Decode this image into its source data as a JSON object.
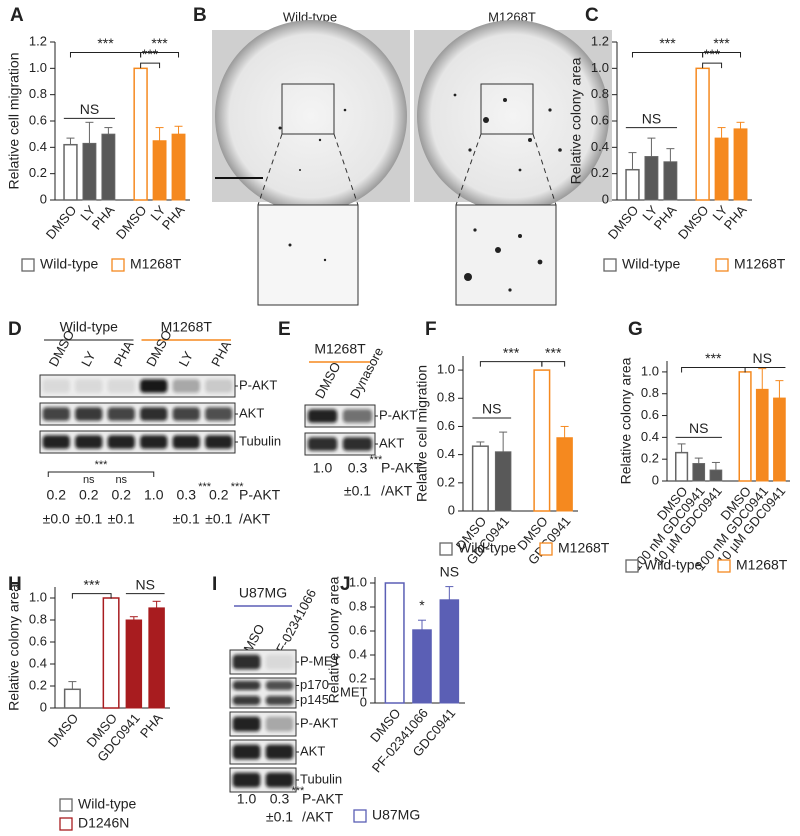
{
  "chart_data": [
    {
      "type": "bar",
      "label": "A",
      "ylabel": "Relative cell migration",
      "ylim": [
        0,
        1.2
      ],
      "yticks": [
        0,
        0.2,
        0.4,
        0.6,
        0.8,
        {
          "value": 1,
          "label": "1.0"
        },
        1.2
      ],
      "categories": [
        "DMSO",
        "LY",
        "PHA",
        "DMSO",
        "LY",
        "PHA"
      ],
      "series": [
        {
          "name": "Wild-type",
          "color": "#666666",
          "fills": [
            "#ffffff",
            "#595959",
            "#595959",
            null,
            null,
            null
          ],
          "values": [
            0.42,
            0.43,
            0.5,
            null,
            null,
            null
          ],
          "errors": [
            0.05,
            0.16,
            0.05,
            null,
            null,
            null
          ]
        },
        {
          "name": "M1268T",
          "color": "#f5891f",
          "fills": [
            null,
            null,
            null,
            "#ffffff",
            "#f5891f",
            "#f5891f"
          ],
          "values": [
            null,
            null,
            null,
            1.0,
            0.45,
            0.5
          ],
          "errors": [
            null,
            null,
            null,
            null,
            0.1,
            0.06
          ]
        }
      ],
      "annotations": [
        "***",
        "NS",
        "***",
        "***"
      ]
    },
    {
      "type": "bar",
      "label": "C",
      "ylabel": "Relative colony area",
      "ylim": [
        0,
        1.2
      ],
      "yticks": [
        0,
        0.2,
        0.4,
        0.6,
        0.8,
        {
          "value": 1,
          "label": "1.0"
        },
        1.2
      ],
      "categories": [
        "DMSO",
        "LY",
        "PHA",
        "DMSO",
        "LY",
        "PHA"
      ],
      "series": [
        {
          "name": "Wild-type",
          "color": "#666666",
          "fills": [
            "#ffffff",
            "#595959",
            "#595959",
            null,
            null,
            null
          ],
          "values": [
            0.23,
            0.33,
            0.29,
            null,
            null,
            null
          ],
          "errors": [
            0.13,
            0.14,
            0.1,
            null,
            null,
            null
          ]
        },
        {
          "name": "M1268T",
          "color": "#f5891f",
          "fills": [
            null,
            null,
            null,
            "#ffffff",
            "#f5891f",
            "#f5891f"
          ],
          "values": [
            null,
            null,
            null,
            1.0,
            0.47,
            0.54
          ],
          "errors": [
            null,
            null,
            null,
            null,
            0.08,
            0.05
          ]
        }
      ],
      "annotations": [
        "***",
        "NS",
        "***",
        "***"
      ]
    },
    {
      "type": "bar",
      "label": "F",
      "ylabel": "Relative cell migration",
      "ylim": [
        0,
        1.1
      ],
      "yticks": [
        0,
        0.2,
        0.4,
        0.6,
        0.8,
        {
          "value": 1,
          "label": "1.0"
        }
      ],
      "categories": [
        "DMSO",
        "GDC0941",
        "DMSO",
        "GDC0941"
      ],
      "series": [
        {
          "name": "Wild-type",
          "color": "#666666",
          "fills": [
            "#ffffff",
            "#595959",
            null,
            null
          ],
          "values": [
            0.46,
            0.42,
            null,
            null
          ],
          "errors": [
            0.03,
            0.14,
            null,
            null
          ]
        },
        {
          "name": "M1268T",
          "color": "#f5891f",
          "fills": [
            null,
            null,
            "#ffffff",
            "#f5891f"
          ],
          "values": [
            null,
            null,
            1.0,
            0.52
          ],
          "errors": [
            null,
            null,
            null,
            0.08
          ]
        }
      ],
      "annotations": [
        "***",
        "***",
        "NS"
      ]
    },
    {
      "type": "bar",
      "label": "G",
      "ylabel": "Relative colony area",
      "ylim": [
        0,
        1.1
      ],
      "yticks": [
        0,
        0.2,
        0.4,
        0.6,
        0.8,
        {
          "value": 1,
          "label": "1.0"
        }
      ],
      "categories": [
        "DMSO",
        "100 nM GDC0941",
        "10 µM GDC0941",
        "DMSO",
        "100 nM GDC0941",
        "10 µM GDC0941"
      ],
      "series": [
        {
          "name": "Wild-type",
          "color": "#666666",
          "fills": [
            "#ffffff",
            "#595959",
            "#595959",
            null,
            null,
            null
          ],
          "values": [
            0.26,
            0.16,
            0.1,
            null,
            null,
            null
          ],
          "errors": [
            0.08,
            0.05,
            0.07,
            null,
            null,
            null
          ]
        },
        {
          "name": "M1268T",
          "color": "#f5891f",
          "fills": [
            null,
            null,
            null,
            "#ffffff",
            "#f5891f",
            "#f5891f"
          ],
          "values": [
            null,
            null,
            null,
            1.0,
            0.84,
            0.76
          ],
          "errors": [
            null,
            null,
            null,
            null,
            0.19,
            0.16
          ]
        }
      ],
      "annotations": [
        "***",
        "NS",
        "NS"
      ]
    },
    {
      "type": "bar",
      "label": "H",
      "ylabel": "Relative colony area",
      "ylim": [
        0,
        1.1
      ],
      "yticks": [
        0,
        0.2,
        0.4,
        0.6,
        0.8,
        {
          "value": 1,
          "label": "1.0"
        }
      ],
      "categories": [
        "DMSO",
        "DMSO",
        "GDC0941",
        "PHA"
      ],
      "series": [
        {
          "name": "Wild-type",
          "color": "#666666",
          "fills": [
            "#ffffff",
            null,
            null,
            null
          ],
          "values": [
            0.17,
            null,
            null,
            null
          ],
          "errors": [
            0.07,
            null,
            null,
            null
          ]
        },
        {
          "name": "D1246N",
          "color": "#a81c1f",
          "fills": [
            null,
            "#ffffff",
            "#a81c1f",
            "#a81c1f"
          ],
          "values": [
            null,
            1.0,
            0.8,
            0.91
          ],
          "errors": [
            null,
            null,
            0.03,
            0.06
          ]
        }
      ],
      "annotations": [
        "***",
        "NS"
      ]
    },
    {
      "type": "bar",
      "label": "J",
      "ylabel": "Relative colony area",
      "ylim": [
        0,
        1.05
      ],
      "yticks": [
        0,
        0.2,
        0.4,
        0.6,
        0.8,
        {
          "value": 1,
          "label": "1.0"
        }
      ],
      "categories": [
        "DMSO",
        "PF-02341066",
        "GDC0941"
      ],
      "series": [
        {
          "name": "U87MG",
          "color": "#5b5fb5",
          "fills": [
            "#ffffff",
            "#5b5fb5",
            "#5b5fb5"
          ],
          "values": [
            1.0,
            0.61,
            0.86
          ],
          "errors": [
            null,
            0.08,
            0.11
          ]
        }
      ],
      "annotations": [
        "*",
        "NS"
      ]
    }
  ],
  "panels": {
    "B": {
      "label": "B",
      "titles": [
        "Wild-type",
        "M1268T"
      ]
    },
    "D": {
      "label": "D",
      "groups": [
        "Wild-type",
        "M1268T"
      ],
      "colors": [
        "#666666",
        "#f5891f"
      ],
      "lanes": [
        "DMSO",
        "LY",
        "PHA",
        "DMSO",
        "LY",
        "PHA"
      ],
      "bands": [
        [
          "P-AKT"
        ],
        [
          "AKT"
        ],
        [
          "Tubulin"
        ]
      ],
      "bracket": "***",
      "significance": [
        null,
        "ns",
        "ns",
        null,
        "***",
        "***"
      ],
      "ratio": [
        "0.2",
        "0.2",
        "0.2",
        "1.0",
        "0.3",
        "0.2"
      ],
      "error": [
        "±0.0",
        "±0.1",
        "±0.1",
        null,
        "±0.1",
        "±0.1"
      ],
      "ratio_label": [
        "P-AKT",
        "/AKT"
      ]
    },
    "E": {
      "label": "E",
      "groups": [
        "M1268T"
      ],
      "colors": [
        "#f5891f"
      ],
      "lanes": [
        "DMSO",
        "Dynasore"
      ],
      "bands": [
        [
          "P-AKT"
        ],
        [
          "AKT"
        ]
      ],
      "significance": [
        null,
        "***"
      ],
      "ratio": [
        "1.0",
        "0.3"
      ],
      "error": [
        null,
        "±0.1"
      ],
      "ratio_label": [
        "P-AKT",
        "/AKT"
      ]
    },
    "I": {
      "label": "I",
      "groups": [
        "U87MG"
      ],
      "colors": [
        "#5b5fb5"
      ],
      "lanes": [
        "DMSO",
        "PF-02341066"
      ],
      "bands": [
        [
          "P-MET"
        ],
        [
          "p170",
          "p145"
        ],
        [
          "P-AKT"
        ],
        [
          "AKT"
        ],
        [
          "Tubulin"
        ]
      ],
      "band_group": "MET",
      "significance": [
        null,
        "***"
      ],
      "ratio": [
        "1.0",
        "0.3"
      ],
      "error": [
        null,
        "±0.1"
      ],
      "ratio_label": [
        "P-AKT",
        "/AKT"
      ]
    }
  }
}
